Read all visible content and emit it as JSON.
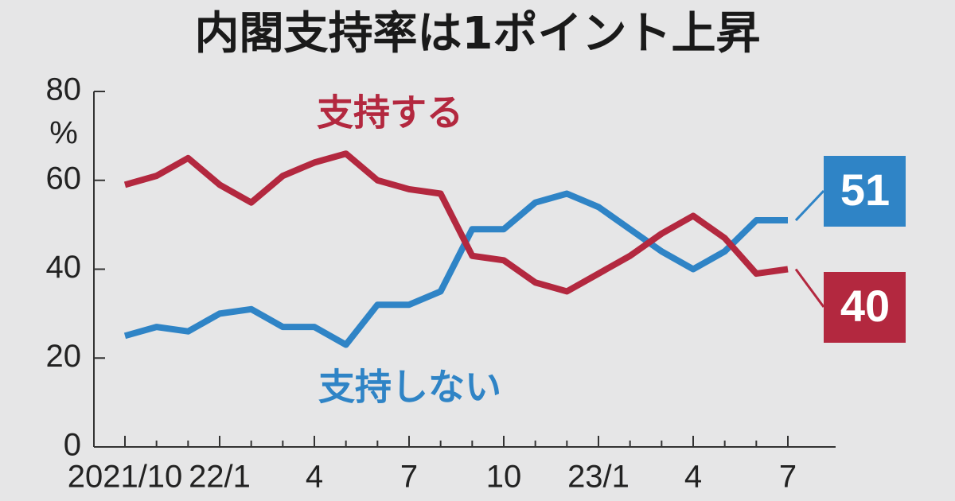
{
  "chart_data": {
    "type": "line",
    "title": "内閣支持率は1ポイント上昇",
    "y_unit": "%",
    "categories": [
      "2021/10",
      null,
      null,
      "22/1",
      null,
      null,
      "4",
      null,
      null,
      "7",
      null,
      null,
      "10",
      null,
      null,
      "23/1",
      null,
      null,
      "4",
      null,
      null,
      "7"
    ],
    "series": [
      {
        "name": "支持しない",
        "color": "#2f84c6",
        "values": [
          25,
          27,
          26,
          30,
          31,
          27,
          27,
          23,
          32,
          32,
          35,
          49,
          49,
          55,
          57,
          54,
          49,
          44,
          40,
          44,
          51,
          51
        ]
      },
      {
        "name": "支持する",
        "color": "#b3283f",
        "values": [
          59,
          61,
          65,
          59,
          55,
          61,
          64,
          66,
          60,
          58,
          57,
          43,
          42,
          37,
          35,
          39,
          43,
          48,
          52,
          47,
          39,
          40
        ]
      }
    ],
    "ylim": [
      0,
      80
    ],
    "yticks": [
      0,
      20,
      40,
      60,
      80
    ]
  }
}
